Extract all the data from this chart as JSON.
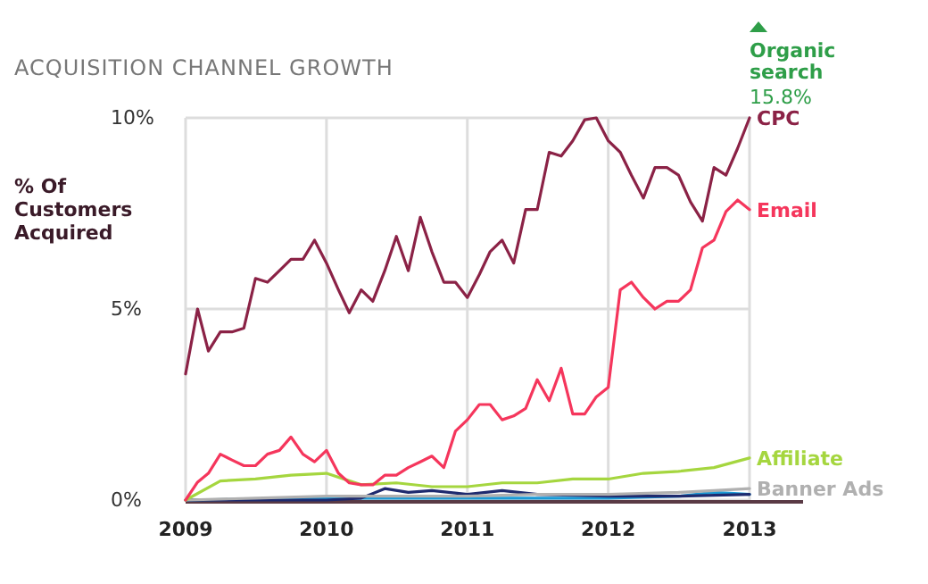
{
  "chart_data": {
    "type": "line",
    "title": "ACQUISITION CHANNEL GROWTH",
    "ylabel": "% Of Customers Acquired",
    "annotations": [
      "Organic search",
      "15.8%"
    ],
    "x": [
      "2009-01",
      "2009-02",
      "2009-03",
      "2009-04",
      "2009-05",
      "2009-06",
      "2009-07",
      "2009-08",
      "2009-09",
      "2009-10",
      "2009-11",
      "2009-12",
      "2010-01",
      "2010-02",
      "2010-03",
      "2010-04",
      "2010-05",
      "2010-06",
      "2010-07",
      "2010-08",
      "2010-09",
      "2010-10",
      "2010-11",
      "2010-12",
      "2011-01",
      "2011-02",
      "2011-03",
      "2011-04",
      "2011-05",
      "2011-06",
      "2011-07",
      "2011-08",
      "2011-09",
      "2011-10",
      "2011-11",
      "2011-12",
      "2012-01",
      "2012-02",
      "2012-03",
      "2012-04",
      "2012-05",
      "2012-06",
      "2012-07",
      "2012-08",
      "2012-09",
      "2012-10",
      "2012-11",
      "2012-12",
      "2013-01"
    ],
    "series": [
      {
        "name": "CPC",
        "color": "#8b2246",
        "values": [
          3.3,
          5.0,
          3.9,
          4.4,
          4.4,
          4.5,
          5.8,
          5.7,
          6.0,
          6.3,
          6.3,
          6.8,
          6.2,
          5.5,
          4.9,
          5.5,
          5.2,
          6.0,
          6.9,
          6.0,
          7.4,
          6.5,
          5.7,
          5.7,
          5.3,
          5.9,
          6.5,
          6.8,
          6.2,
          7.6,
          7.6,
          9.1,
          9.0,
          9.4,
          9.95,
          10.0,
          9.4,
          9.1,
          8.5,
          7.9,
          8.7,
          8.7,
          8.5,
          7.8,
          7.3,
          8.7,
          8.5,
          9.2,
          10.0
        ]
      },
      {
        "name": "Email",
        "color": "#f5365c",
        "values": [
          0,
          0.47,
          0.7,
          1.2,
          1.05,
          0.9,
          0.9,
          1.2,
          1.3,
          1.65,
          1.2,
          1.0,
          1.3,
          0.7,
          0.45,
          0.4,
          0.4,
          0.65,
          0.65,
          0.85,
          1.0,
          1.15,
          0.85,
          1.8,
          2.1,
          2.5,
          2.5,
          2.1,
          2.2,
          2.4,
          3.15,
          2.6,
          3.45,
          2.25,
          2.25,
          2.7,
          2.95,
          5.5,
          5.7,
          5.3,
          5.0,
          5.2,
          5.2,
          5.5,
          6.6,
          6.8,
          7.55,
          7.85,
          7.6
        ]
      },
      {
        "name": "Affiliate",
        "color": "#a5d63f",
        "x": [
          "2009-01",
          "2009-04",
          "2009-07",
          "2009-10",
          "2010-01",
          "2010-04",
          "2010-07",
          "2010-10",
          "2011-01",
          "2011-04",
          "2011-07",
          "2011-10",
          "2012-01",
          "2012-04",
          "2012-07",
          "2012-10",
          "2013-01"
        ],
        "values": [
          0,
          0.5,
          0.55,
          0.65,
          0.7,
          0.4,
          0.45,
          0.35,
          0.35,
          0.45,
          0.45,
          0.55,
          0.55,
          0.7,
          0.75,
          0.85,
          1.1
        ]
      },
      {
        "name": "Banner Ads",
        "color": "#b0b0b0",
        "x": [
          "2009-01",
          "2009-07",
          "2010-01",
          "2010-07",
          "2011-01",
          "2011-07",
          "2012-01",
          "2012-07",
          "2012-10",
          "2013-01"
        ],
        "values": [
          0,
          0.05,
          0.1,
          0.1,
          0.1,
          0.15,
          0.15,
          0.2,
          0.25,
          0.3
        ]
      },
      {
        "color": "#1e2a6e",
        "x": [
          "2009-01",
          "2010-01",
          "2010-04",
          "2010-06",
          "2010-08",
          "2010-10",
          "2011-01",
          "2011-04",
          "2011-07",
          "2012-01",
          "2012-07",
          "2013-01"
        ],
        "values": [
          0,
          0,
          0.05,
          0.3,
          0.2,
          0.25,
          0.15,
          0.25,
          0.15,
          0.1,
          0.1,
          0.15
        ]
      },
      {
        "color": "#1a9ad6",
        "x": [
          "2009-01",
          "2010-01",
          "2011-01",
          "2012-01",
          "2012-07",
          "2012-10",
          "2013-01"
        ],
        "values": [
          0,
          0.05,
          0.05,
          0.05,
          0.1,
          0.2,
          0.15
        ]
      }
    ],
    "xlim": [
      "2009-01",
      "2013-01"
    ],
    "xticks": [
      {
        "value": "2009-01",
        "label": "2009"
      },
      {
        "value": "2010-01",
        "label": "2010"
      },
      {
        "value": "2011-01",
        "label": "2011"
      },
      {
        "value": "2012-01",
        "label": "2012"
      },
      {
        "value": "2013-01",
        "label": "2013"
      }
    ],
    "ylim": [
      0,
      10
    ],
    "yticks": [
      {
        "value": 0,
        "label": "0%"
      },
      {
        "value": 5,
        "label": "5%"
      },
      {
        "value": 10,
        "label": "10%"
      }
    ],
    "grid": true
  }
}
